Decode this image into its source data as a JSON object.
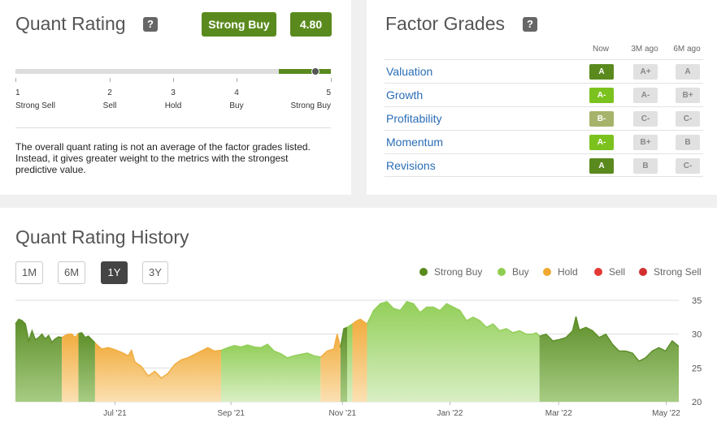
{
  "quant": {
    "title": "Quant Rating",
    "help": "?",
    "rating_label": "Strong Buy",
    "rating_value": "4.80",
    "rating_fraction": 0.95,
    "scale": [
      {
        "num": "1",
        "label": "Strong Sell"
      },
      {
        "num": "2",
        "label": "Sell"
      },
      {
        "num": "3",
        "label": "Hold"
      },
      {
        "num": "4",
        "label": "Buy"
      },
      {
        "num": "5",
        "label": "Strong Buy"
      }
    ],
    "description": "The overall quant rating is not an average of the factor grades listed. Instead, it gives greater weight to the metrics with the strongest predictive value."
  },
  "factors": {
    "title": "Factor Grades",
    "help": "?",
    "columns": [
      "Now",
      "3M ago",
      "6M ago"
    ],
    "rows": [
      {
        "name": "Valuation",
        "now": "A",
        "m3": "A+",
        "m6": "A",
        "now_color": "#5a8a1e"
      },
      {
        "name": "Growth",
        "now": "A-",
        "m3": "A-",
        "m6": "B+",
        "now_color": "#7cc21e"
      },
      {
        "name": "Profitability",
        "now": "B-",
        "m3": "C-",
        "m6": "C-",
        "now_color": "#a5b46a"
      },
      {
        "name": "Momentum",
        "now": "A-",
        "m3": "B+",
        "m6": "B",
        "now_color": "#7cc21e"
      },
      {
        "name": "Revisions",
        "now": "A",
        "m3": "B",
        "m6": "C-",
        "now_color": "#5a8a1e"
      }
    ]
  },
  "history": {
    "title": "Quant Rating History",
    "periods": [
      "1M",
      "6M",
      "1Y",
      "3Y"
    ],
    "active_period": "1Y",
    "legend": [
      {
        "name": "Strong Buy",
        "color": "#5a8a1e"
      },
      {
        "name": "Buy",
        "color": "#8fcd50"
      },
      {
        "name": "Hold",
        "color": "#f0a830"
      },
      {
        "name": "Sell",
        "color": "#e53935"
      },
      {
        "name": "Strong Sell",
        "color": "#d32f2f"
      }
    ]
  },
  "chart_data": {
    "type": "area",
    "x_tick_labels": [
      "Jul '21",
      "Sep '21",
      "Nov '21",
      "Jan '22",
      "Mar '22",
      "May '22"
    ],
    "y_ticks": [
      20,
      25,
      30,
      35
    ],
    "ylim": [
      20,
      35
    ],
    "x_range": [
      0,
      100
    ],
    "x_tick_positions": [
      15,
      32.5,
      49.3,
      65.5,
      81.9,
      98.1
    ],
    "grid": true,
    "legend_position": "top-right",
    "series": [
      {
        "points": [
          [
            0,
            31.5
          ],
          [
            0.5,
            32.2
          ],
          [
            1,
            32
          ],
          [
            1.5,
            31.5
          ],
          [
            2,
            29
          ],
          [
            2.5,
            30.5
          ],
          [
            3,
            29.2
          ],
          [
            3.5,
            29.5
          ],
          [
            4,
            30
          ],
          [
            4.5,
            29.3
          ],
          [
            5,
            29.8
          ],
          [
            5.5,
            28.8
          ],
          [
            6,
            29.3
          ],
          [
            6.5,
            29.6
          ],
          [
            7,
            29.5
          ]
        ],
        "rating": "Strong Buy"
      },
      {
        "points": [
          [
            7,
            29.5
          ],
          [
            7.5,
            29.8
          ],
          [
            8,
            30
          ],
          [
            8.5,
            30
          ],
          [
            9,
            29.5
          ],
          [
            9.5,
            30.1
          ]
        ],
        "rating": "Hold"
      },
      {
        "points": [
          [
            9.5,
            30.1
          ],
          [
            10,
            30.2
          ],
          [
            10.5,
            29.5
          ],
          [
            11,
            29.7
          ],
          [
            11.5,
            29.2
          ],
          [
            12,
            28.7
          ]
        ],
        "rating": "Strong Buy"
      },
      {
        "points": [
          [
            12,
            28.7
          ],
          [
            13,
            27.8
          ],
          [
            14,
            28
          ],
          [
            15,
            27.7
          ],
          [
            16,
            27.3
          ],
          [
            17,
            26.8
          ],
          [
            17.5,
            27.6
          ],
          [
            18,
            25.9
          ],
          [
            19,
            25.2
          ],
          [
            20,
            23.8
          ],
          [
            21,
            24.5
          ],
          [
            22,
            23.5
          ],
          [
            23,
            24.2
          ],
          [
            24,
            25.5
          ],
          [
            25,
            26.2
          ],
          [
            26,
            26.5
          ],
          [
            27,
            27
          ],
          [
            28,
            27.5
          ],
          [
            29,
            28
          ],
          [
            30,
            27.5
          ],
          [
            31,
            27.6
          ]
        ],
        "rating": "Hold"
      },
      {
        "points": [
          [
            31,
            27.6
          ],
          [
            32,
            28
          ],
          [
            33,
            28.3
          ],
          [
            34,
            28.1
          ],
          [
            35,
            28.4
          ],
          [
            36,
            28.1
          ],
          [
            37,
            28
          ],
          [
            38,
            28.5
          ],
          [
            39,
            27.5
          ],
          [
            40,
            27.1
          ],
          [
            41,
            26.5
          ],
          [
            42,
            26.8
          ],
          [
            43,
            27
          ],
          [
            44,
            27.2
          ],
          [
            45,
            26.8
          ],
          [
            46,
            26.6
          ]
        ],
        "rating": "Buy"
      },
      {
        "points": [
          [
            46,
            26.6
          ],
          [
            47,
            27.5
          ],
          [
            48,
            27.8
          ],
          [
            48.5,
            30
          ],
          [
            49,
            28
          ]
        ],
        "rating": "Hold"
      },
      {
        "points": [
          [
            49,
            28
          ],
          [
            49.5,
            30.8
          ],
          [
            50,
            31
          ]
        ],
        "rating": "Strong Buy"
      },
      {
        "points": [
          [
            50,
            31
          ],
          [
            50.8,
            31.5
          ]
        ],
        "rating": "Buy"
      },
      {
        "points": [
          [
            50.8,
            31.5
          ],
          [
            51.5,
            32
          ],
          [
            52,
            32.2
          ],
          [
            53,
            31.5
          ]
        ],
        "rating": "Hold"
      },
      {
        "points": [
          [
            53,
            31.5
          ],
          [
            53.5,
            32.5
          ],
          [
            54,
            33.5
          ],
          [
            55,
            34.5
          ],
          [
            56,
            34.8
          ],
          [
            57,
            33.8
          ],
          [
            58,
            33.5
          ],
          [
            59,
            34.8
          ],
          [
            60,
            34.5
          ],
          [
            61,
            33.2
          ],
          [
            62,
            34
          ],
          [
            63,
            34
          ],
          [
            64,
            33.5
          ],
          [
            65,
            34.5
          ],
          [
            66,
            34
          ],
          [
            67,
            33.5
          ],
          [
            68,
            32
          ],
          [
            69,
            32.5
          ],
          [
            70,
            32
          ],
          [
            71,
            31
          ],
          [
            72,
            31.5
          ],
          [
            73,
            30.5
          ],
          [
            74,
            30.8
          ],
          [
            75,
            30.2
          ],
          [
            76,
            30.5
          ],
          [
            77,
            30
          ],
          [
            78,
            30
          ],
          [
            78.5,
            30.2
          ],
          [
            79,
            29.7
          ]
        ],
        "rating": "Buy"
      },
      {
        "points": [
          [
            79,
            29.7
          ],
          [
            80,
            30
          ],
          [
            81,
            29
          ],
          [
            82,
            29.2
          ],
          [
            83,
            29.5
          ],
          [
            84,
            30.5
          ],
          [
            84.5,
            32.6
          ],
          [
            85,
            30.6
          ],
          [
            86,
            31
          ],
          [
            87,
            30.5
          ],
          [
            88,
            29.5
          ],
          [
            89,
            30
          ],
          [
            90,
            28.5
          ],
          [
            91,
            27.5
          ],
          [
            92,
            27.5
          ],
          [
            93,
            27.2
          ],
          [
            94,
            26
          ],
          [
            95,
            26.5
          ],
          [
            96,
            27.5
          ],
          [
            97,
            28
          ],
          [
            98,
            27.5
          ],
          [
            99,
            29
          ],
          [
            100,
            28.2
          ]
        ],
        "rating": "Strong Buy"
      }
    ]
  }
}
